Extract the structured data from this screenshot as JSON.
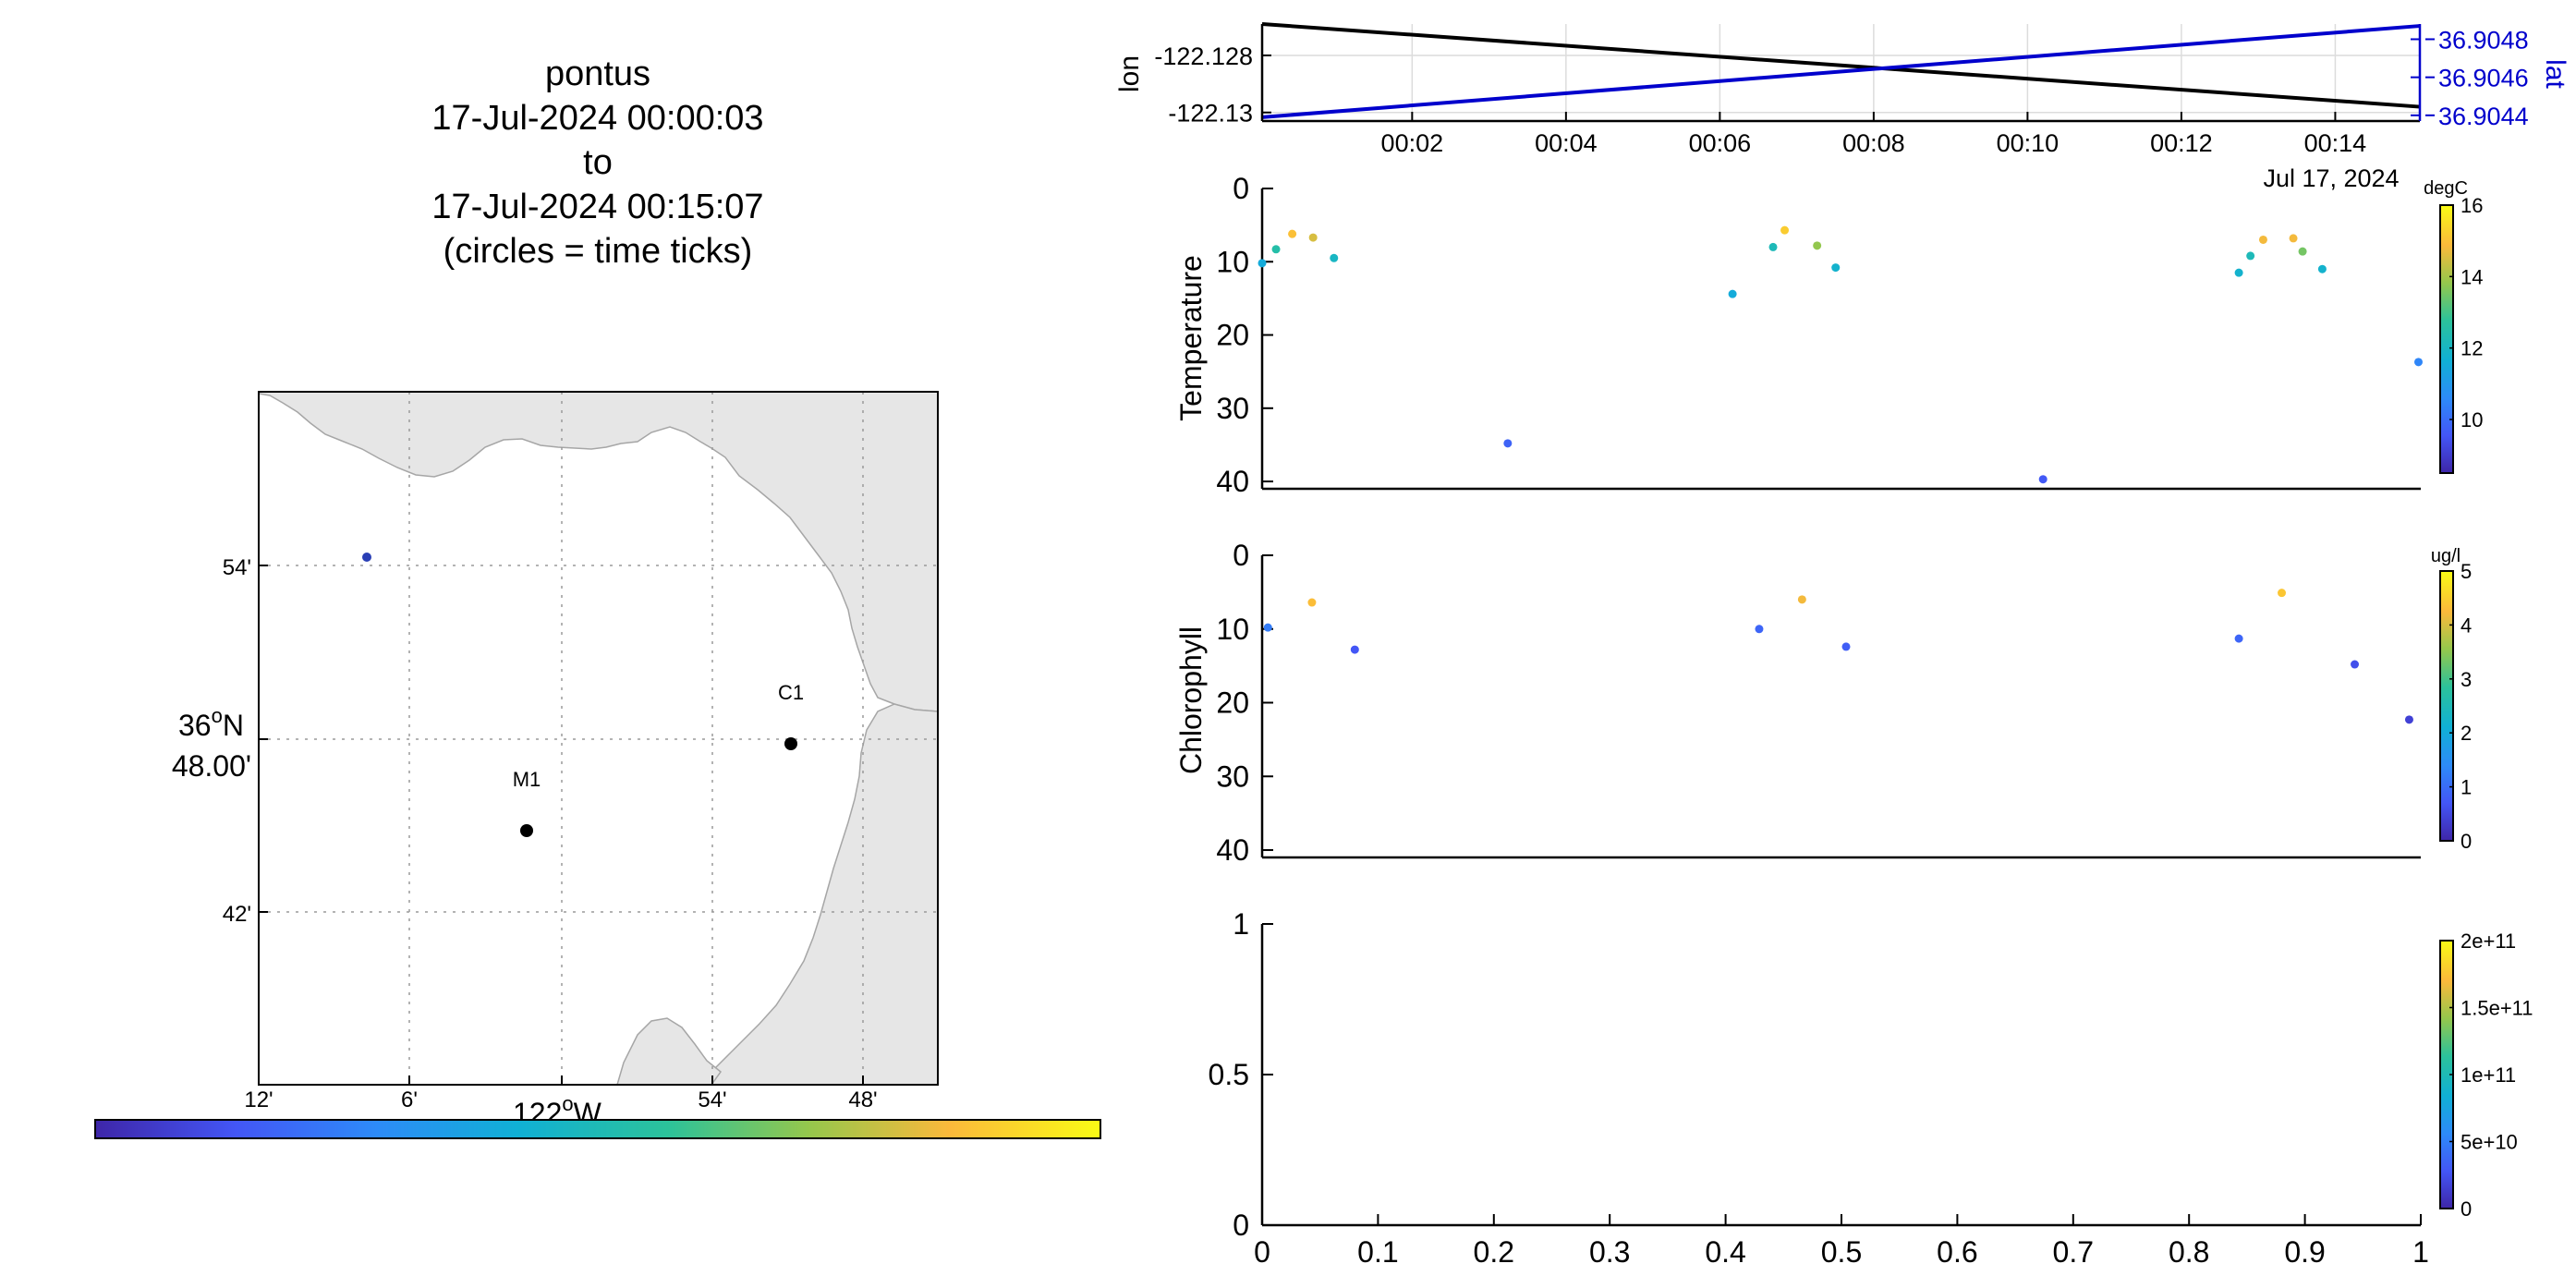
{
  "title_block": {
    "lines": [
      "pontus",
      "17-Jul-2024 00:00:03",
      "to",
      "17-Jul-2024 00:15:07",
      "(circles = time ticks)"
    ]
  },
  "map": {
    "lat_ticks": [
      "54'",
      "42'"
    ],
    "lat_center_deg": "36",
    "lat_center_hem": "N",
    "lat_center_min": "48.00'",
    "lon_ticks": [
      "12'",
      "6'",
      "54'",
      "48'"
    ],
    "lon_center_deg": "122",
    "lon_center_hem": "W",
    "stations": [
      {
        "label": "C1"
      },
      {
        "label": "M1"
      }
    ],
    "track_color": "#2a3fb5",
    "land_color": "#e6e6e6",
    "colorbar": {
      "colormap": "parula"
    }
  },
  "chart_data": [
    {
      "type": "line",
      "panel": "lon-lat",
      "ylabel": "lon",
      "y2label": "lat",
      "xtick_labels": [
        "00:02",
        "00:04",
        "00:06",
        "00:08",
        "00:10",
        "00:12",
        "00:14"
      ],
      "xtick_minutes": [
        2,
        4,
        6,
        8,
        10,
        12,
        14
      ],
      "x_date_label": "Jul 17, 2024",
      "xlim_minutes": [
        0.05,
        15.1
      ],
      "ytick_labels": [
        "-122.128",
        "-122.13"
      ],
      "ytick_values": [
        -122.128,
        -122.13
      ],
      "ylim": [
        -122.1303,
        -122.1269
      ],
      "y2tick_labels": [
        "36.9048",
        "36.9046",
        "36.9044"
      ],
      "y2tick_values": [
        36.9048,
        36.9046,
        36.9044
      ],
      "y2lim": [
        36.90437,
        36.90488
      ],
      "grid": true,
      "series": [
        {
          "axis": "left",
          "color": "#000000",
          "x_minutes": [
            0.05,
            15.1
          ],
          "values": [
            -122.1269,
            -122.1298
          ]
        },
        {
          "axis": "right",
          "color": "#0000cc",
          "x_minutes": [
            0.05,
            15.1
          ],
          "values": [
            36.90439,
            36.90487
          ]
        }
      ]
    },
    {
      "type": "scatter",
      "panel": "temperature",
      "ylabel": "Temperature",
      "ylim": [
        0,
        41
      ],
      "y_reversed": true,
      "ytick_labels": [
        "0",
        "10",
        "20",
        "30",
        "40"
      ],
      "ytick_values": [
        0,
        10,
        20,
        30,
        40
      ],
      "xlim": [
        0,
        1
      ],
      "colorbar": {
        "unit": "degC",
        "tick_labels": [
          "16",
          "14",
          "12",
          "10"
        ],
        "tick_values": [
          16,
          14,
          12,
          10
        ],
        "range": [
          8.5,
          16
        ]
      },
      "points": [
        {
          "x": 0.0,
          "y": 10.2,
          "c": 11.5
        },
        {
          "x": 0.012,
          "y": 8.3,
          "c": 12.5
        },
        {
          "x": 0.026,
          "y": 6.2,
          "c": 15.0
        },
        {
          "x": 0.044,
          "y": 6.7,
          "c": 14.5
        },
        {
          "x": 0.062,
          "y": 9.5,
          "c": 12.0
        },
        {
          "x": 0.212,
          "y": 34.8,
          "c": 9.8
        },
        {
          "x": 0.406,
          "y": 14.4,
          "c": 11.5
        },
        {
          "x": 0.441,
          "y": 8.0,
          "c": 12.2
        },
        {
          "x": 0.451,
          "y": 5.7,
          "c": 15.2
        },
        {
          "x": 0.479,
          "y": 7.8,
          "c": 13.8
        },
        {
          "x": 0.495,
          "y": 10.8,
          "c": 11.8
        },
        {
          "x": 0.674,
          "y": 39.7,
          "c": 9.6
        },
        {
          "x": 0.843,
          "y": 11.5,
          "c": 11.8
        },
        {
          "x": 0.853,
          "y": 9.2,
          "c": 12.2
        },
        {
          "x": 0.864,
          "y": 7.0,
          "c": 14.8
        },
        {
          "x": 0.89,
          "y": 6.8,
          "c": 14.8
        },
        {
          "x": 0.898,
          "y": 8.6,
          "c": 13.5
        },
        {
          "x": 0.915,
          "y": 11.0,
          "c": 11.8
        },
        {
          "x": 0.998,
          "y": 23.7,
          "c": 10.5
        }
      ]
    },
    {
      "type": "scatter",
      "panel": "chlorophyll",
      "ylabel": "Chlorophyll",
      "ylim": [
        0,
        41
      ],
      "y_reversed": true,
      "ytick_labels": [
        "0",
        "10",
        "20",
        "30",
        "40"
      ],
      "ytick_values": [
        0,
        10,
        20,
        30,
        40
      ],
      "xlim": [
        0,
        1
      ],
      "colorbar": {
        "unit": "ug/l",
        "tick_labels": [
          "5",
          "4",
          "3",
          "2",
          "1",
          "0"
        ],
        "tick_values": [
          5,
          4,
          3,
          2,
          1,
          0
        ],
        "range": [
          0,
          5
        ]
      },
      "points": [
        {
          "x": 0.005,
          "y": 9.8,
          "c": 1.2
        },
        {
          "x": 0.043,
          "y": 6.4,
          "c": 4.3
        },
        {
          "x": 0.08,
          "y": 12.8,
          "c": 0.7
        },
        {
          "x": 0.429,
          "y": 10.0,
          "c": 0.9
        },
        {
          "x": 0.466,
          "y": 6.0,
          "c": 4.2
        },
        {
          "x": 0.504,
          "y": 12.4,
          "c": 0.8
        },
        {
          "x": 0.843,
          "y": 11.3,
          "c": 0.9
        },
        {
          "x": 0.88,
          "y": 5.1,
          "c": 4.4
        },
        {
          "x": 0.943,
          "y": 14.8,
          "c": 0.6
        },
        {
          "x": 0.99,
          "y": 22.3,
          "c": 0.4
        }
      ]
    },
    {
      "type": "scatter",
      "panel": "empty",
      "xlim": [
        0,
        1
      ],
      "ylim": [
        0,
        1
      ],
      "xtick_labels": [
        "0",
        "0.1",
        "0.2",
        "0.3",
        "0.4",
        "0.5",
        "0.6",
        "0.7",
        "0.8",
        "0.9",
        "1"
      ],
      "xtick_values": [
        0,
        0.1,
        0.2,
        0.3,
        0.4,
        0.5,
        0.6,
        0.7,
        0.8,
        0.9,
        1
      ],
      "ytick_labels": [
        "1",
        "0.5",
        "0"
      ],
      "ytick_values": [
        1,
        0.5,
        0
      ],
      "colorbar": {
        "unit": "",
        "tick_labels": [
          "2e+11",
          "1.5e+11",
          "1e+11",
          "5e+10",
          "0"
        ],
        "tick_values": [
          200000000000.0,
          150000000000.0,
          100000000000.0,
          50000000000.0,
          0
        ],
        "range": [
          0,
          200000000000.0
        ]
      },
      "points": []
    }
  ]
}
